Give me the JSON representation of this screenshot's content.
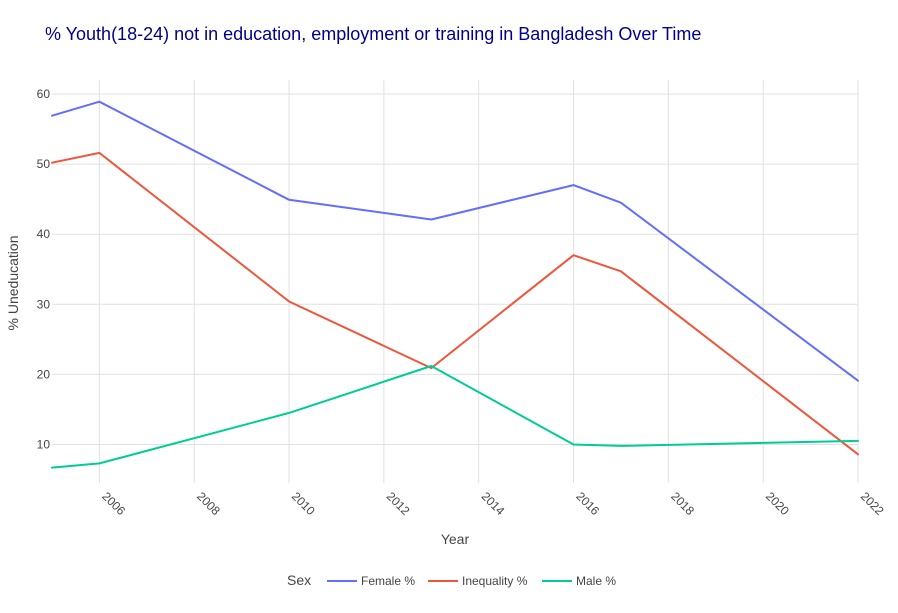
{
  "chart_data": {
    "type": "line",
    "title": "% Youth(18-24) not in education, employment or training in Bangladesh Over Time",
    "xlabel": "Year",
    "ylabel": "% Uneducation",
    "xlim": [
      2005,
      2022
    ],
    "ylim": [
      4.5,
      62
    ],
    "x_ticks": [
      2006,
      2008,
      2010,
      2012,
      2014,
      2016,
      2018,
      2020,
      2022
    ],
    "y_ticks": [
      10,
      20,
      30,
      40,
      50,
      60
    ],
    "grid": true,
    "legend": {
      "title": "Sex",
      "placement": "bottom"
    },
    "series": [
      {
        "name": "Female %",
        "color": "#636efa",
        "x": [
          2005,
          2006,
          2010,
          2013,
          2016,
          2017,
          2022
        ],
        "y": [
          56.9,
          58.9,
          44.9,
          42.1,
          47.0,
          44.5,
          19.1
        ]
      },
      {
        "name": "Inequality %",
        "color": "#ef553b",
        "x": [
          2005,
          2006,
          2010,
          2013,
          2016,
          2017,
          2022
        ],
        "y": [
          50.2,
          51.6,
          30.4,
          20.9,
          37.0,
          34.7,
          8.6
        ]
      },
      {
        "name": "Male %",
        "color": "#00cc96",
        "x": [
          2005,
          2006,
          2010,
          2013,
          2016,
          2017,
          2022
        ],
        "y": [
          6.7,
          7.3,
          14.5,
          21.2,
          10.0,
          9.8,
          10.5
        ]
      }
    ]
  }
}
